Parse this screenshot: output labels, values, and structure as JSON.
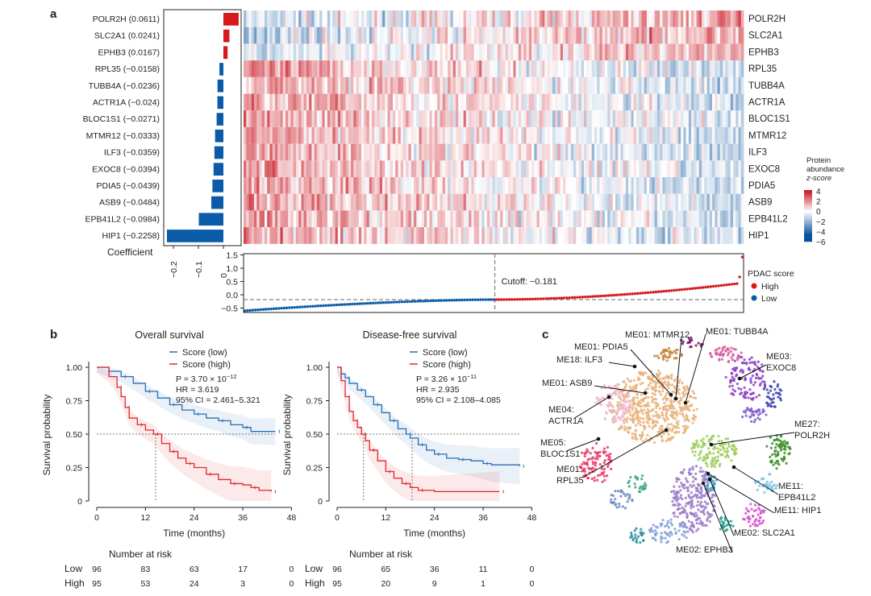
{
  "panel_labels": {
    "a": "a",
    "b": "b",
    "c": "c"
  },
  "panel_a": {
    "genes": [
      "POLR2H",
      "SLC2A1",
      "EPHB3",
      "RPL35",
      "TUBB4A",
      "ACTR1A",
      "BLOC1S1",
      "MTMR12",
      "ILF3",
      "EXOC8",
      "PDIA5",
      "ASB9",
      "EPB41L2",
      "HIP1"
    ],
    "coef_labels": [
      "POLR2H (0.0611)",
      "SLC2A1 (0.0241)",
      "EPHB3 (0.0167)",
      "RPL35 (−0.0158)",
      "TUBB4A (−0.0236)",
      "ACTR1A (−0.024)",
      "BLOC1S1 (−0.0271)",
      "MTMR12 (−0.0333)",
      "ILF3 (−0.0359)",
      "EXOC8 (−0.0394)",
      "PDIA5 (−0.0439)",
      "ASB9 (−0.0484)",
      "EPB41L2 (−0.0984)",
      "HIP1 (−0.2258)"
    ],
    "coefficients": [
      0.0611,
      0.0241,
      0.0167,
      -0.0158,
      -0.0236,
      -0.024,
      -0.0271,
      -0.0333,
      -0.0359,
      -0.0394,
      -0.0439,
      -0.0484,
      -0.0984,
      -0.2258
    ],
    "coef_axis_label": "Coefficient",
    "coef_ticks": [
      "−0.2",
      "−0.1",
      "0"
    ],
    "legend_title": [
      "Protein",
      "abundance",
      "z-score"
    ],
    "legend_ticks": [
      "4",
      "2",
      "0",
      "−2",
      "−4",
      "−6"
    ],
    "score_axis_ticks": [
      "1.5",
      "1.0",
      "0.5",
      "0.0",
      "−0.5"
    ],
    "cutoff_label": "Cutoff: −0.181",
    "score_legend": {
      "title": "PDAC score",
      "high": "High",
      "low": "Low"
    },
    "colors": {
      "high": "#d7191c",
      "low": "#0b5ca8"
    }
  },
  "chart_data": [
    {
      "type": "bar",
      "title": "",
      "xlabel": "Coefficient",
      "categories": [
        "POLR2H",
        "SLC2A1",
        "EPHB3",
        "RPL35",
        "TUBB4A",
        "ACTR1A",
        "BLOC1S1",
        "MTMR12",
        "ILF3",
        "EXOC8",
        "PDIA5",
        "ASB9",
        "EPB41L2",
        "HIP1"
      ],
      "values": [
        0.0611,
        0.0241,
        0.0167,
        -0.0158,
        -0.0236,
        -0.024,
        -0.0271,
        -0.0333,
        -0.0359,
        -0.0394,
        -0.0439,
        -0.0484,
        -0.0984,
        -0.2258
      ]
    },
    {
      "type": "scatter",
      "title": "PDAC score",
      "cutoff": -0.181,
      "n_low": 96,
      "n_high": 95,
      "low_range": [
        -0.6,
        -0.181
      ],
      "high_range": [
        -0.181,
        0.42
      ],
      "top_values": [
        0.67,
        1.42
      ],
      "ylim": [
        -0.65,
        1.5
      ]
    },
    {
      "type": "line",
      "title": "Overall survival",
      "xlabel": "Time (months)",
      "ylabel": "Survival probability",
      "xticks": [
        "0",
        "12",
        "24",
        "36",
        "48"
      ],
      "yticks": [
        "0",
        "0.25",
        "0.50",
        "0.75",
        "1.00"
      ],
      "xlim": [
        0,
        48
      ],
      "ylim": [
        0,
        1
      ],
      "series": [
        {
          "name": "Score (low)",
          "color": "#2a6db5",
          "x": [
            0,
            3,
            6,
            9,
            12,
            15,
            18,
            21,
            24,
            27,
            30,
            33,
            36,
            38,
            44
          ],
          "y": [
            1,
            0.97,
            0.93,
            0.88,
            0.82,
            0.77,
            0.72,
            0.68,
            0.65,
            0.62,
            0.6,
            0.57,
            0.55,
            0.52,
            0.52
          ]
        },
        {
          "name": "Score (high)",
          "color": "#e0282e",
          "x": [
            0,
            3,
            5,
            6,
            7,
            8,
            10,
            12,
            14,
            16,
            18,
            20,
            22,
            24,
            27,
            30,
            33,
            36,
            38,
            40,
            43
          ],
          "y": [
            1,
            0.93,
            0.85,
            0.78,
            0.7,
            0.62,
            0.57,
            0.53,
            0.5,
            0.43,
            0.37,
            0.32,
            0.28,
            0.25,
            0.2,
            0.16,
            0.13,
            0.12,
            0.1,
            0.08,
            0.07
          ]
        }
      ],
      "median_lines": [
        14.5
      ],
      "stats": {
        "p": "P = 3.70 × 10",
        "p_exp": "−12",
        "hr": "HR = 3.619",
        "ci": "95% CI = 2.461–5.321"
      },
      "risk_table": {
        "title": "Number at risk",
        "low_label": "Low",
        "high_label": "High",
        "low": [
          "96",
          "83",
          "63",
          "17",
          "0"
        ],
        "high": [
          "95",
          "53",
          "24",
          "3",
          "0"
        ]
      }
    },
    {
      "type": "line",
      "title": "Disease-free survival",
      "xlabel": "Time (months)",
      "ylabel": "Survival probability",
      "xticks": [
        "0",
        "12",
        "24",
        "36",
        "48"
      ],
      "yticks": [
        "0",
        "0.25",
        "0.50",
        "0.75",
        "1.00"
      ],
      "xlim": [
        0,
        48
      ],
      "ylim": [
        0,
        1
      ],
      "series": [
        {
          "name": "Score (low)",
          "color": "#2a6db5",
          "x": [
            0,
            1,
            2,
            3,
            5,
            7,
            9,
            11,
            13,
            15,
            17,
            18,
            20,
            22,
            24,
            27,
            30,
            33,
            36,
            38,
            45
          ],
          "y": [
            1,
            0.95,
            0.92,
            0.88,
            0.83,
            0.78,
            0.72,
            0.66,
            0.6,
            0.54,
            0.5,
            0.47,
            0.42,
            0.38,
            0.35,
            0.32,
            0.31,
            0.3,
            0.28,
            0.27,
            0.26
          ]
        },
        {
          "name": "Score (high)",
          "color": "#e0282e",
          "x": [
            0,
            1,
            2,
            3,
            4,
            5,
            6,
            7,
            8,
            10,
            12,
            14,
            16,
            18,
            20,
            24,
            40
          ],
          "y": [
            1,
            0.9,
            0.78,
            0.67,
            0.6,
            0.55,
            0.5,
            0.45,
            0.38,
            0.3,
            0.22,
            0.17,
            0.13,
            0.1,
            0.08,
            0.07,
            0.07
          ]
        }
      ],
      "median_lines": [
        6.5,
        18.5
      ],
      "stats": {
        "p": "P = 3.26 × 10",
        "p_exp": "−11",
        "hr": "HR = 2.935",
        "ci": "95% CI = 2.108–4.085"
      },
      "risk_table": {
        "title": "Number at risk",
        "low_label": "Low",
        "high_label": "High",
        "low": [
          "96",
          "65",
          "36",
          "11",
          "0"
        ],
        "high": [
          "95",
          "20",
          "9",
          "1",
          "0"
        ]
      }
    }
  ],
  "panel_c": {
    "labels": [
      [
        "ME01: MTMR12"
      ],
      [
        "ME01: TUBB4A"
      ],
      [
        "ME01: PDIA5"
      ],
      [
        "ME18: ILF3"
      ],
      [
        "ME03:",
        "EXOC8"
      ],
      [
        "ME01: ASB9"
      ],
      [
        "ME04:",
        "ACTR1A"
      ],
      [
        "ME27:",
        "POLR2H"
      ],
      [
        "ME05:",
        "BLOC1S1"
      ],
      [
        "ME01:",
        "RPL35"
      ],
      [
        "ME11:",
        "EPB41L2"
      ],
      [
        "ME11: HIP1"
      ],
      [
        "ME02: SLC2A1"
      ],
      [
        "ME02: EPHB3"
      ]
    ]
  }
}
